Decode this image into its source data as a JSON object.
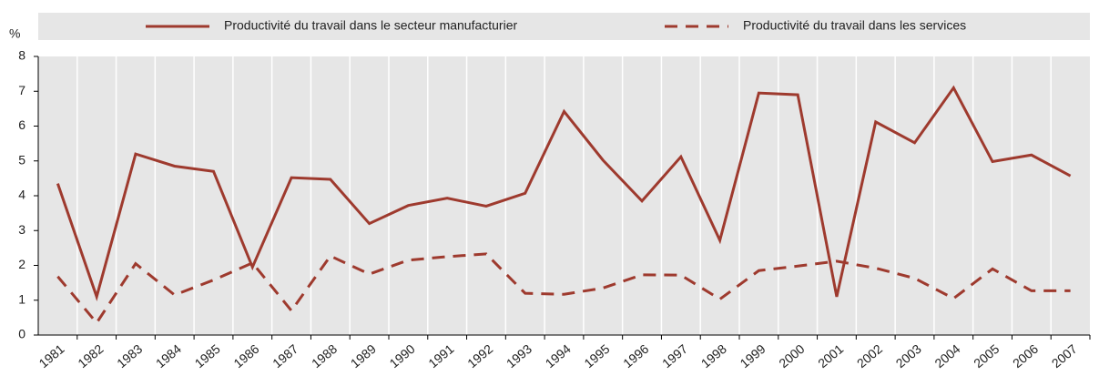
{
  "chart_data": {
    "type": "line",
    "y_label": "%",
    "categories": [
      "1981",
      "1982",
      "1983",
      "1984",
      "1985",
      "1986",
      "1987",
      "1988",
      "1989",
      "1990",
      "1991",
      "1992",
      "1993",
      "1994",
      "1995",
      "1996",
      "1997",
      "1998",
      "1999",
      "2000",
      "2001",
      "2002",
      "2003",
      "2004",
      "2005",
      "2006",
      "2007"
    ],
    "series": [
      {
        "name": "Productivité du travail dans le secteur manufacturier",
        "color": "#9e3a2e",
        "line_style": "solid",
        "values": [
          4.35,
          1.1,
          5.2,
          4.85,
          4.7,
          1.95,
          4.52,
          4.47,
          3.2,
          3.72,
          3.93,
          3.7,
          4.07,
          6.42,
          5.02,
          3.85,
          5.12,
          2.72,
          6.95,
          6.9,
          1.1,
          6.12,
          5.52,
          7.1,
          4.98,
          5.17,
          4.57
        ]
      },
      {
        "name": "Productivité du travail dans les services",
        "color": "#9e3a2e",
        "line_style": "dashed",
        "values": [
          1.68,
          0.35,
          2.05,
          1.15,
          1.58,
          2.07,
          0.7,
          2.27,
          1.75,
          2.15,
          2.25,
          2.33,
          1.2,
          1.17,
          1.35,
          1.73,
          1.72,
          1.03,
          1.85,
          1.98,
          2.12,
          1.92,
          1.63,
          1.05,
          1.9,
          1.27,
          1.27
        ]
      }
    ],
    "ylim": [
      0,
      8
    ],
    "yticks": [
      0,
      1,
      2,
      3,
      4,
      5,
      6,
      7,
      8
    ],
    "grid": "vertical"
  }
}
